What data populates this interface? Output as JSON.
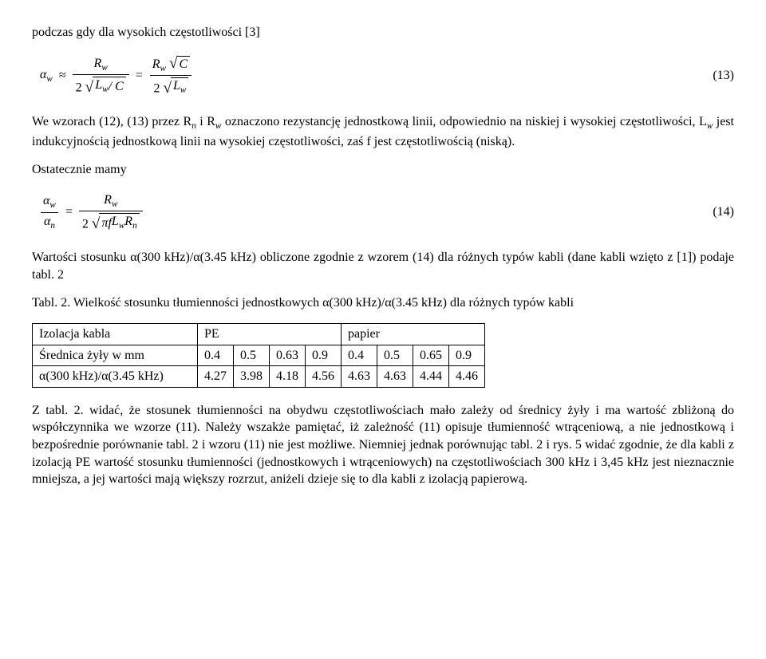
{
  "para1": "podczas gdy dla wysokich częstotliwości [3]",
  "eq13": {
    "lhs_alpha": "α",
    "lhs_sub": "w",
    "t1_num_R": "R",
    "t1_num_sub": "w",
    "t1_den_2": "2",
    "t1_den_rad": "L",
    "t1_den_rad_sub": "w",
    "t1_den_slashC": " / C",
    "t2_num_R": "R",
    "t2_num_sub": "w",
    "t2_num_rad": "C",
    "t2_den_2": "2",
    "t2_den_rad": "L",
    "t2_den_rad_sub": "w",
    "num": "(13)"
  },
  "para2_a": "We wzorach (12), (13) przez R",
  "para2_b": " i R",
  "para2_c": " oznaczono rezystancję jednostkową linii, odpowiednio na niskiej i wysokiej częstotliwości, L",
  "para2_d": " jest indukcyjnością jednostkową linii na wysokiej częstotliwości, zaś f jest częstotliwością (niską).",
  "para2_sub_n": "n",
  "para2_sub_w": "w",
  "para3": "Ostatecznie mamy",
  "eq14": {
    "l_num_alpha": "α",
    "l_num_sub": "w",
    "l_den_alpha": "α",
    "l_den_sub": "n",
    "r_num_R": "R",
    "r_num_sub": "w",
    "r_den_2": "2",
    "r_den_pi": "π",
    "r_den_f": "f",
    "r_den_L": "L",
    "r_den_L_sub": "w",
    "r_den_R": "R",
    "r_den_R_sub": "n",
    "num": "(14)"
  },
  "para4": "Wartości stosunku α(300 kHz)/α(3.45 kHz) obliczone zgodnie z wzorem (14) dla różnych typów kabli (dane kabli wzięto z [1]) podaje tabl. 2",
  "tabcaption": "Tabl. 2. Wielkość stosunku tłumienności jednostkowych α(300 kHz)/α(3.45 kHz) dla różnych typów kabli",
  "table": {
    "row_labels": [
      "Izolacja kabla",
      "Średnica żyły w mm",
      "α(300 kHz)/α(3.45 kHz)"
    ],
    "iso": {
      "pe": "PE",
      "paper": "papier"
    },
    "diam": [
      "0.4",
      "0.5",
      "0.63",
      "0.9",
      "0.4",
      "0.5",
      "0.65",
      "0.9"
    ],
    "ratio": [
      "4.27",
      "3.98",
      "4.18",
      "4.56",
      "4.63",
      "4.63",
      "4.44",
      "4.46"
    ]
  },
  "para5": "Z tabl. 2. widać, że stosunek tłumienności na obydwu częstotliwościach mało zależy od średnicy żyły i ma wartość zbliżoną do współczynnika we wzorze (11). Należy wszakże pamiętać, iż zależność (11) opisuje tłumienność wtrąceniową, a nie jednostkową i bezpośrednie porównanie tabl. 2 i wzoru (11) nie jest możliwe. Niemniej jednak porównując tabl. 2 i rys. 5 widać zgodnie, że dla kabli z izolacją PE wartość stosunku tłumienności (jednostkowych i wtrąceniowych) na częstotliwościach 300 kHz i 3,45 kHz jest nieznacznie mniejsza, a jej wartości mają większy rozrzut, aniżeli dzieje się to dla kabli z izolacją papierową.",
  "colors": {
    "text": "#000000",
    "bg": "#ffffff",
    "rule": "#000000"
  },
  "font": {
    "family": "Times New Roman",
    "size_pt": 12
  }
}
